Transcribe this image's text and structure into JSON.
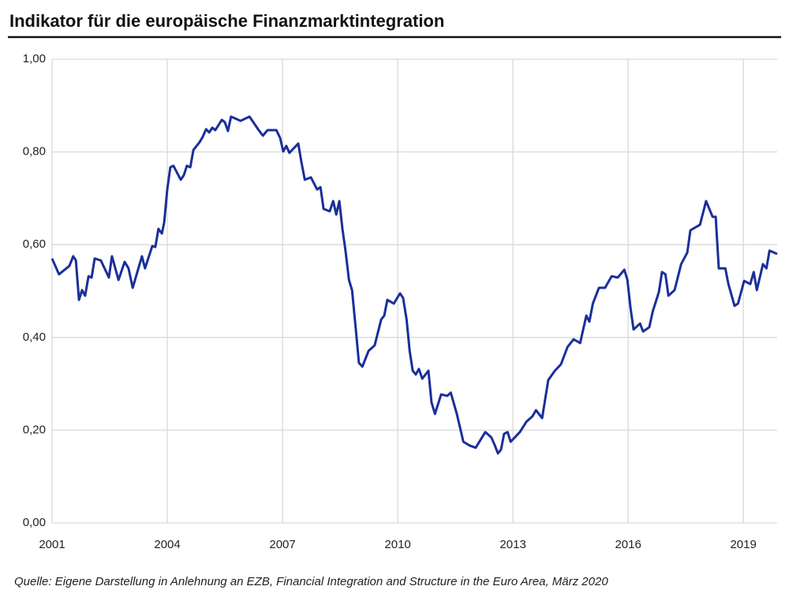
{
  "chart_data": {
    "type": "line",
    "title": "Indikator für die europäische Finanzmarktintegration",
    "source": "Quelle: Eigene Darstellung in Anlehnung an EZB, Financial Integration and Structure in the Euro Area, März 2020",
    "xlim": [
      2001,
      2019.88
    ],
    "xticks": [
      2001,
      2004,
      2007,
      2010,
      2013,
      2016,
      2019
    ],
    "ylim": [
      0,
      1
    ],
    "yticks": [
      {
        "value": 0,
        "label": "0,00"
      },
      {
        "value": 0.2,
        "label": "0,20"
      },
      {
        "value": 0.4,
        "label": "0,40"
      },
      {
        "value": 0.6,
        "label": "0,60"
      },
      {
        "value": 0.8,
        "label": "0,80"
      },
      {
        "value": 1,
        "label": "1,00"
      }
    ],
    "grid": true,
    "series": [
      {
        "color": "#1a2f99",
        "x": [
          2001.0,
          2001.18,
          2001.45,
          2001.55,
          2001.62,
          2001.7,
          2001.78,
          2001.86,
          2001.95,
          2002.03,
          2002.11,
          2002.27,
          2002.48,
          2002.56,
          2002.73,
          2002.89,
          2002.99,
          2003.1,
          2003.34,
          2003.42,
          2003.61,
          2003.69,
          2003.77,
          2003.86,
          2003.92,
          2004.0,
          2004.08,
          2004.16,
          2004.35,
          2004.43,
          2004.51,
          2004.6,
          2004.68,
          2004.84,
          2004.92,
          2005.01,
          2005.09,
          2005.17,
          2005.25,
          2005.42,
          2005.5,
          2005.58,
          2005.66,
          2005.91,
          2006.14,
          2006.38,
          2006.49,
          2006.61,
          2006.84,
          2006.94,
          2007.02,
          2007.1,
          2007.18,
          2007.41,
          2007.49,
          2007.58,
          2007.74,
          2007.9,
          2007.99,
          2008.07,
          2008.23,
          2008.32,
          2008.4,
          2008.48,
          2008.56,
          2008.64,
          2008.73,
          2008.81,
          2008.91,
          2008.99,
          2009.08,
          2009.24,
          2009.4,
          2009.57,
          2009.65,
          2009.73,
          2009.9,
          2010.06,
          2010.14,
          2010.23,
          2010.31,
          2010.39,
          2010.47,
          2010.55,
          2010.64,
          2010.8,
          2010.88,
          2010.97,
          2011.13,
          2011.29,
          2011.38,
          2011.54,
          2011.71,
          2011.87,
          2012.03,
          2012.28,
          2012.44,
          2012.53,
          2012.61,
          2012.69,
          2012.77,
          2012.86,
          2012.94,
          2013.18,
          2013.35,
          2013.51,
          2013.6,
          2013.76,
          2013.92,
          2014.09,
          2014.25,
          2014.42,
          2014.58,
          2014.75,
          2014.91,
          2014.99,
          2015.08,
          2015.24,
          2015.4,
          2015.57,
          2015.73,
          2015.9,
          2015.98,
          2016.06,
          2016.14,
          2016.31,
          2016.39,
          2016.55,
          2016.64,
          2016.8,
          2016.88,
          2016.97,
          2017.05,
          2017.21,
          2017.38,
          2017.54,
          2017.62,
          2017.87,
          2018.03,
          2018.2,
          2018.28,
          2018.36,
          2018.53,
          2018.61,
          2018.77,
          2018.86,
          2019.02,
          2019.18,
          2019.27,
          2019.35,
          2019.51,
          2019.6,
          2019.68,
          2019.88
        ],
        "values": [
          0.57,
          0.536,
          0.554,
          0.575,
          0.566,
          0.481,
          0.502,
          0.49,
          0.532,
          0.529,
          0.57,
          0.566,
          0.529,
          0.575,
          0.524,
          0.563,
          0.549,
          0.507,
          0.575,
          0.549,
          0.597,
          0.595,
          0.634,
          0.624,
          0.648,
          0.719,
          0.767,
          0.77,
          0.74,
          0.75,
          0.77,
          0.767,
          0.804,
          0.821,
          0.832,
          0.849,
          0.842,
          0.852,
          0.847,
          0.869,
          0.864,
          0.845,
          0.876,
          0.867,
          0.876,
          0.847,
          0.835,
          0.847,
          0.847,
          0.83,
          0.801,
          0.813,
          0.798,
          0.818,
          0.779,
          0.74,
          0.745,
          0.719,
          0.724,
          0.677,
          0.672,
          0.694,
          0.665,
          0.694,
          0.634,
          0.587,
          0.524,
          0.502,
          0.417,
          0.345,
          0.337,
          0.371,
          0.383,
          0.439,
          0.447,
          0.481,
          0.473,
          0.495,
          0.485,
          0.439,
          0.371,
          0.328,
          0.32,
          0.332,
          0.311,
          0.328,
          0.26,
          0.235,
          0.277,
          0.274,
          0.281,
          0.235,
          0.175,
          0.167,
          0.162,
          0.196,
          0.184,
          0.167,
          0.15,
          0.158,
          0.192,
          0.196,
          0.175,
          0.196,
          0.218,
          0.23,
          0.243,
          0.226,
          0.308,
          0.328,
          0.342,
          0.379,
          0.396,
          0.388,
          0.447,
          0.434,
          0.473,
          0.507,
          0.507,
          0.532,
          0.529,
          0.546,
          0.524,
          0.464,
          0.417,
          0.43,
          0.413,
          0.422,
          0.456,
          0.498,
          0.541,
          0.536,
          0.49,
          0.502,
          0.558,
          0.583,
          0.631,
          0.643,
          0.694,
          0.66,
          0.66,
          0.549,
          0.549,
          0.515,
          0.468,
          0.473,
          0.522,
          0.515,
          0.541,
          0.502,
          0.558,
          0.549,
          0.587,
          0.58
        ]
      }
    ]
  }
}
